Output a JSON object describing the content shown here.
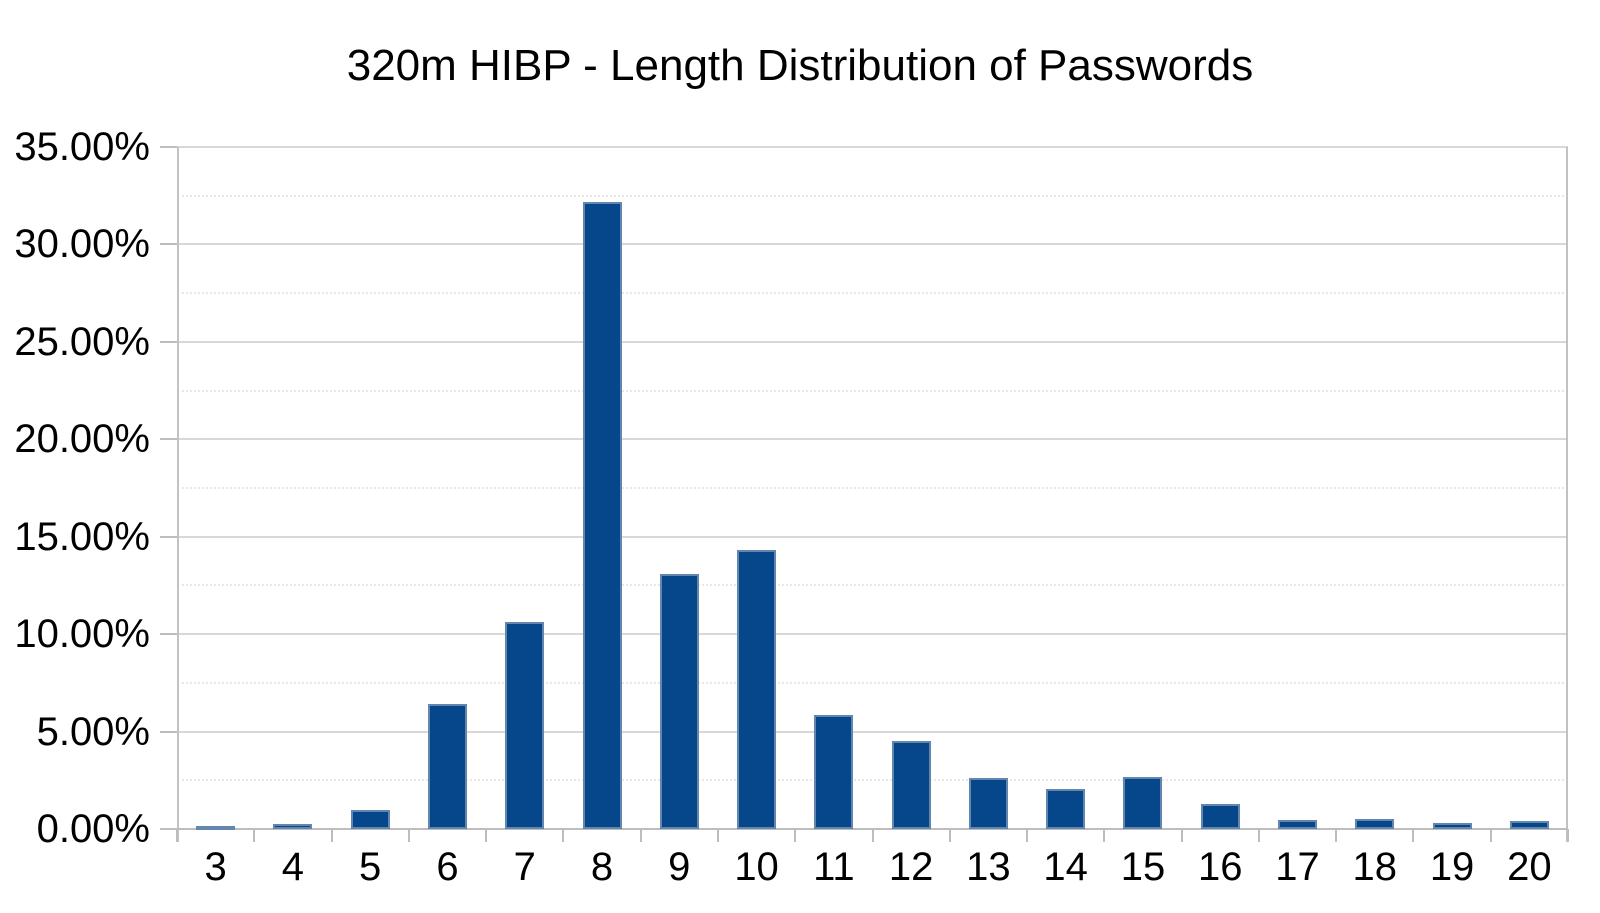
{
  "chart": {
    "title": "320m HIBP - Length Distribution of Passwords"
  },
  "chart_data": {
    "type": "bar",
    "title": "320m HIBP - Length Distribution of Passwords",
    "xlabel": "",
    "ylabel": "",
    "categories": [
      "3",
      "4",
      "5",
      "6",
      "7",
      "8",
      "9",
      "10",
      "11",
      "12",
      "13",
      "14",
      "15",
      "16",
      "17",
      "18",
      "19",
      "20"
    ],
    "values": [
      0.08,
      0.25,
      0.97,
      6.4,
      10.6,
      32.2,
      13.1,
      14.3,
      5.85,
      4.5,
      2.62,
      2.06,
      2.66,
      1.3,
      0.46,
      0.51,
      0.31,
      0.42
    ],
    "ylim": [
      0,
      35
    ],
    "y_major_step": 5,
    "y_minor_step": 2.5,
    "y_tick_labels": [
      "0.00%",
      "5.00%",
      "10.00%",
      "15.00%",
      "20.00%",
      "25.00%",
      "30.00%",
      "35.00%"
    ],
    "legend": "none",
    "grid": "major-and-minor-horizontal",
    "colors": {
      "bar_fill": "#05478a",
      "bar_border": "#6286ad",
      "grid_major": "#d8d8d8",
      "grid_minor": "#e7e7e7",
      "axis": "#bdbdbd",
      "text": "#000000",
      "background": "#ffffff"
    }
  }
}
